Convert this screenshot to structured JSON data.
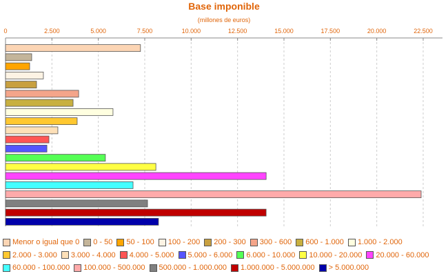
{
  "chart_data": {
    "type": "bar",
    "orientation": "horizontal",
    "title": "Base imponible",
    "subtitle": "(millones de euros)",
    "categories": [
      "Menor o igual que 0",
      "0 - 50",
      "50 - 100",
      "100 - 200",
      "200 - 300",
      "300 - 600",
      "600 - 1.000",
      "1.000 - 2.000",
      "2.000 - 3.000",
      "3.000 - 4.000",
      "4.000 - 5.000",
      "5.000 - 6.000",
      "6.000 - 10.000",
      "10.000 - 20.000",
      "20.000 - 60.000",
      "60.000 - 100.000",
      "100.000 - 500.000",
      "500.000 - 1.000.000",
      "1.000.000 - 5.000.000",
      "> 5.000.000"
    ],
    "values": [
      7270,
      1410,
      1300,
      2040,
      1670,
      3940,
      3640,
      5790,
      3860,
      2820,
      2340,
      2230,
      5380,
      8100,
      14040,
      6870,
      22390,
      7650,
      14040,
      8240
    ],
    "colors": [
      "#fcd5b4",
      "#c4b59a",
      "#ffa500",
      "#fdf3e4",
      "#c8a040",
      "#f4a58a",
      "#c8b040",
      "#ffffe0",
      "#ffc830",
      "#fde0b8",
      "#ff5555",
      "#5555ff",
      "#55ff55",
      "#ffff44",
      "#ff44ff",
      "#44ffff",
      "#ffaaaa",
      "#808080",
      "#c00000",
      "#0000aa"
    ],
    "xlim": [
      0,
      23540
    ],
    "xticks": [
      0,
      {
        "value": 2500,
        "label": "2.500"
      },
      {
        "value": 5000,
        "label": "5.000"
      },
      {
        "value": 7500,
        "label": "7.500"
      },
      {
        "value": 10000,
        "label": "10.000"
      },
      {
        "value": 12500,
        "label": "12.500"
      },
      {
        "value": 15000,
        "label": "15.000"
      },
      {
        "value": 17500,
        "label": "17.500"
      },
      {
        "value": 20000,
        "label": "20.000"
      },
      {
        "value": 22500,
        "label": "22.500"
      }
    ],
    "grid": true,
    "legend": "bottom"
  }
}
